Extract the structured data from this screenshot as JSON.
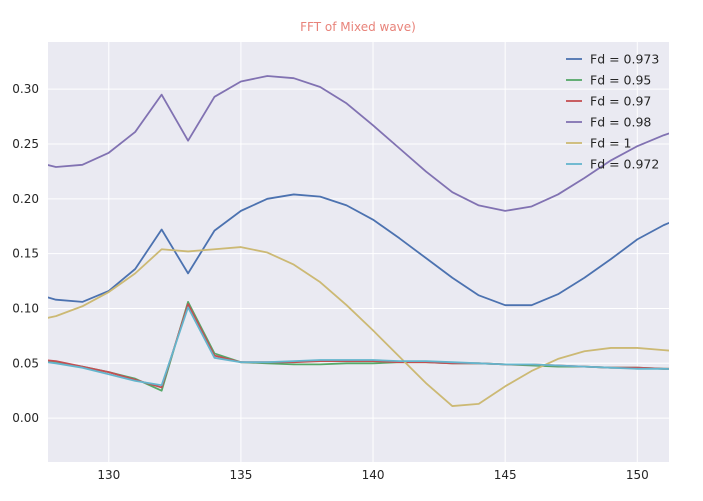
{
  "chart_data": {
    "type": "line",
    "title": "FFT of Mixed wave)",
    "xlabel": "",
    "ylabel": "",
    "xlim": [
      127.7,
      151.2
    ],
    "ylim": [
      -0.04,
      0.343
    ],
    "xticks": [
      130,
      135,
      140,
      145,
      150
    ],
    "yticks": [
      0.0,
      0.05,
      0.1,
      0.15,
      0.2,
      0.25,
      0.3
    ],
    "xtick_labels": [
      "130",
      "135",
      "140",
      "145",
      "150"
    ],
    "ytick_labels": [
      "0.00",
      "0.05",
      "0.10",
      "0.15",
      "0.20",
      "0.25",
      "0.30"
    ],
    "grid": true,
    "legend_position": "top-right",
    "x": [
      127,
      128,
      129,
      130,
      131,
      132,
      133,
      134,
      135,
      136,
      137,
      138,
      139,
      140,
      141,
      142,
      143,
      144,
      145,
      146,
      147,
      148,
      149,
      150,
      151,
      152
    ],
    "series": [
      {
        "name": "Fd = 0.973",
        "color": "#4c72b0",
        "values": [
          0.115,
          0.108,
          0.106,
          0.116,
          0.136,
          0.172,
          0.132,
          0.171,
          0.189,
          0.2,
          0.204,
          0.202,
          0.194,
          0.181,
          0.164,
          0.146,
          0.128,
          0.112,
          0.103,
          0.103,
          0.113,
          0.128,
          0.145,
          0.163,
          0.176,
          0.186
        ]
      },
      {
        "name": "Fd = 0.95",
        "color": "#55a868",
        "values": [
          0.053,
          0.051,
          0.047,
          0.042,
          0.036,
          0.025,
          0.106,
          0.059,
          0.051,
          0.05,
          0.049,
          0.049,
          0.05,
          0.05,
          0.051,
          0.051,
          0.05,
          0.05,
          0.049,
          0.048,
          0.047,
          0.047,
          0.046,
          0.046,
          0.045,
          0.045
        ]
      },
      {
        "name": "Fd = 0.97",
        "color": "#c44e52",
        "values": [
          0.054,
          0.052,
          0.047,
          0.042,
          0.035,
          0.028,
          0.104,
          0.057,
          0.051,
          0.051,
          0.051,
          0.052,
          0.052,
          0.052,
          0.051,
          0.051,
          0.05,
          0.05,
          0.049,
          0.049,
          0.048,
          0.047,
          0.046,
          0.046,
          0.045,
          0.045
        ]
      },
      {
        "name": "Fd = 0.98",
        "color": "#8172b2",
        "values": [
          0.235,
          0.229,
          0.231,
          0.242,
          0.261,
          0.295,
          0.253,
          0.293,
          0.307,
          0.312,
          0.31,
          0.302,
          0.287,
          0.267,
          0.246,
          0.225,
          0.206,
          0.194,
          0.189,
          0.193,
          0.204,
          0.219,
          0.235,
          0.248,
          0.258,
          0.266
        ]
      },
      {
        "name": "Fd = 1",
        "color": "#ccb974",
        "values": [
          0.088,
          0.093,
          0.102,
          0.115,
          0.132,
          0.154,
          0.152,
          0.154,
          0.156,
          0.151,
          0.14,
          0.124,
          0.103,
          0.08,
          0.056,
          0.032,
          0.011,
          0.013,
          0.029,
          0.043,
          0.054,
          0.061,
          0.064,
          0.064,
          0.062,
          0.06
        ]
      },
      {
        "name": "Fd = 0.972",
        "color": "#64b5cd",
        "values": [
          0.053,
          0.05,
          0.046,
          0.04,
          0.034,
          0.03,
          0.101,
          0.055,
          0.051,
          0.051,
          0.052,
          0.053,
          0.053,
          0.053,
          0.052,
          0.052,
          0.051,
          0.05,
          0.049,
          0.049,
          0.048,
          0.047,
          0.046,
          0.045,
          0.045,
          0.044
        ]
      }
    ]
  },
  "style": {
    "plot_background": "#eaeaf2",
    "grid_color": "#ffffff",
    "title_color": "#e8837a"
  }
}
